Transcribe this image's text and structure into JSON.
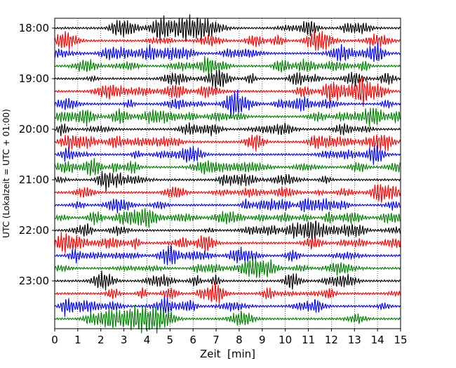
{
  "chart_data": {
    "type": "line",
    "xlabel": "Zeit  [min]",
    "ylabel": "UTC (Lokalzeit = UTC + 01:00)",
    "xlim": [
      0,
      15
    ],
    "x_ticks": [
      "0",
      "1",
      "2",
      "3",
      "4",
      "5",
      "6",
      "7",
      "8",
      "9",
      "10",
      "11",
      "12",
      "13",
      "14",
      "15"
    ],
    "y_ticks": [
      "18:00",
      "19:00",
      "20:00",
      "21:00",
      "22:00",
      "23:00"
    ],
    "x_grid": "dotted vertical lines at each minute",
    "trace_interval_minutes": 15,
    "trace_count": 24,
    "first_trace": "18:00",
    "colors_cycle": [
      "#000000",
      "#ff0000",
      "#0000ff",
      "#008000"
    ]
  }
}
